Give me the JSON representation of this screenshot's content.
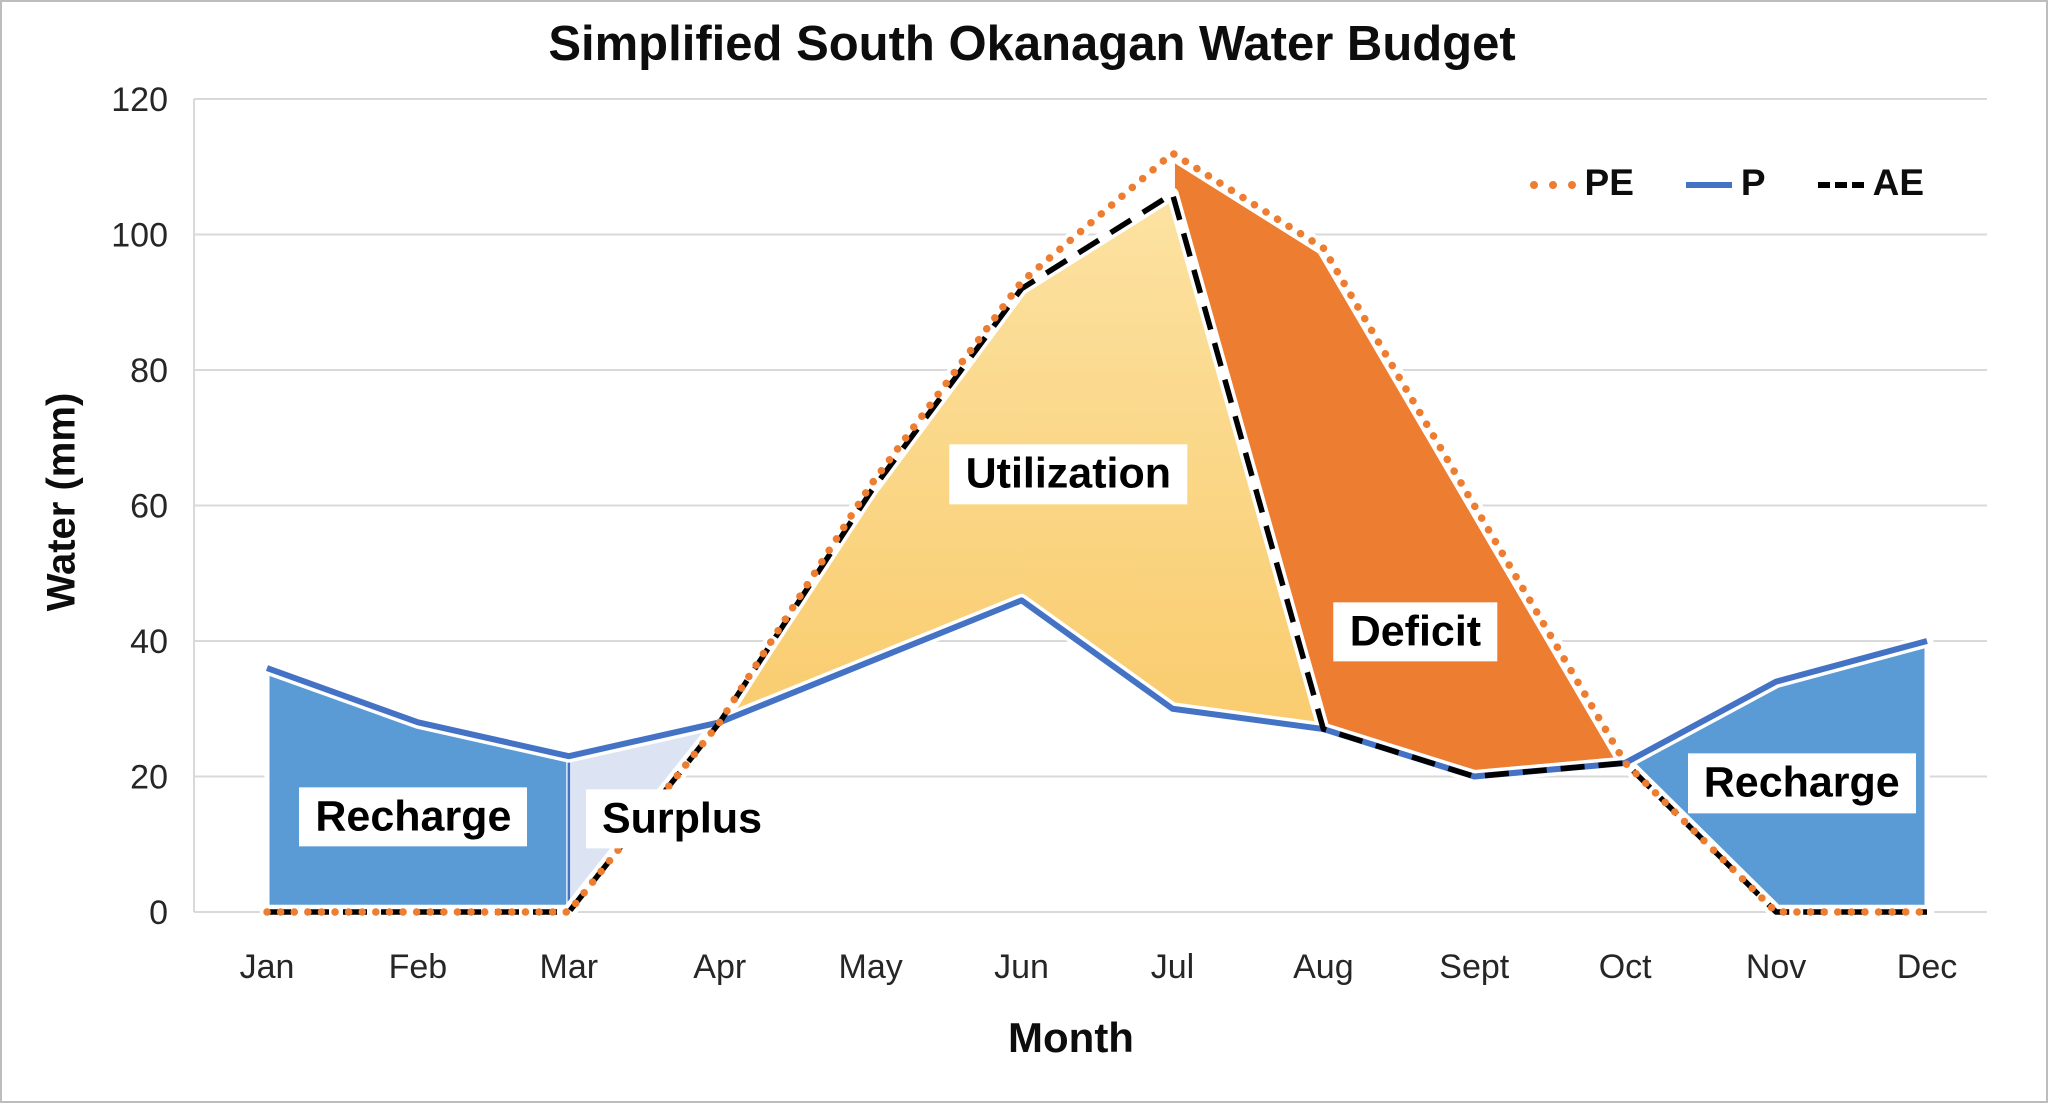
{
  "title": "Simplified South Okanagan Water Budget",
  "axes": {
    "x_title": "Month",
    "y_title": "Water (mm)",
    "y_ticks": [
      0,
      20,
      40,
      60,
      80,
      100,
      120
    ],
    "y_max": 120,
    "grid_color": "#D9D9D9",
    "tick_text_color": "#262626"
  },
  "chart_data": {
    "type": "area",
    "title": "Simplified South Okanagan Water Budget",
    "xlabel": "Month",
    "ylabel": "Water (mm)",
    "ylim": [
      0,
      120
    ],
    "grid": "horizontal",
    "legend_position": "top-right",
    "categories": [
      "Jan",
      "Feb",
      "Mar",
      "Apr",
      "May",
      "Jun",
      "Jul",
      "Aug",
      "Sept",
      "Oct",
      "Nov",
      "Dec"
    ],
    "series": [
      {
        "name": "P",
        "style": "solid",
        "color": "#4472C4",
        "width": 6,
        "values": [
          36,
          28,
          23,
          28,
          37,
          46,
          30,
          27,
          20,
          22,
          34,
          40
        ]
      },
      {
        "name": "AE",
        "style": "dashed",
        "color": "#000000",
        "width": 5.5,
        "values": [
          0,
          0,
          0,
          28,
          62,
          92,
          106,
          27,
          20,
          22,
          0,
          0
        ]
      },
      {
        "name": "PE",
        "style": "dotted",
        "color": "#ED7D31",
        "width": 7.5,
        "values": [
          0,
          0,
          0,
          28,
          63,
          93,
          112,
          98,
          60,
          22,
          0,
          0
        ]
      }
    ],
    "legend_order": [
      "PE",
      "P",
      "AE"
    ],
    "regions": [
      {
        "name": "recharge-left",
        "upper": "P",
        "lower": "AE",
        "from": 0,
        "to": 2,
        "fill": "#5B9BD5"
      },
      {
        "name": "surplus",
        "upper": "P",
        "lower": "AE",
        "from": 2,
        "to": 3,
        "fill": "#DCE4F3",
        "stroke": "#4472C4"
      },
      {
        "name": "utilization",
        "upper": "AE",
        "lower": "P",
        "from": 3,
        "to": 7,
        "fill_top": "#FCE2A2",
        "fill_bottom": "#F9CC6E"
      },
      {
        "name": "deficit",
        "upper": "PE",
        "lower": "AE",
        "from": 6,
        "to": 9,
        "fill": "#ED7D31"
      },
      {
        "name": "recharge-right",
        "upper": "P",
        "lower": "AE",
        "from": 9,
        "to": 11,
        "fill": "#5B9BD5"
      }
    ],
    "annotations": [
      {
        "text": "Recharge",
        "x": 0.97,
        "y": 14
      },
      {
        "text": "Surplus",
        "x": 2.75,
        "y": 13.7
      },
      {
        "text": "Utilization",
        "x": 5.31,
        "y": 64.6
      },
      {
        "text": "Deficit",
        "x": 7.61,
        "y": 41.3
      },
      {
        "text": "Recharge",
        "x": 10.17,
        "y": 19
      }
    ]
  }
}
